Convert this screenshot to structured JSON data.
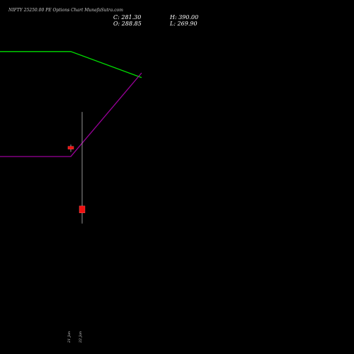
{
  "title": "NIFTY 25250.00 PE Options Chart MunafaSutra.com",
  "ohlc": {
    "close": "C: 281.30",
    "open": "O: 288.85",
    "high": "H: 390.00",
    "low": "L: 269.90"
  },
  "colors": {
    "background": "#000000",
    "line_upper": "#00dd00",
    "line_lower": "#990099",
    "candle": "#ee1111",
    "wick": "#bbbbbb"
  },
  "chart_data": {
    "type": "candlestick",
    "title": "NIFTY 25250.00 PE Options Chart MunafaSutra.com",
    "x_labels": [
      "21 Jan",
      "22 Jan"
    ],
    "yrange": [
      160,
      480
    ],
    "candles": [
      {
        "date": "21 Jan",
        "open": 353,
        "high": 355,
        "low": 347,
        "close": 350
      },
      {
        "date": "22 Jan",
        "open": 288.85,
        "high": 390.0,
        "low": 269.9,
        "close": 281.3
      }
    ],
    "series": [
      {
        "color": "#00dd00",
        "points": [
          {
            "x": "",
            "y": 455
          },
          {
            "x": "21 Jan",
            "y": 455
          },
          {
            "x": "",
            "y": 427
          }
        ]
      },
      {
        "color": "#990099",
        "points": [
          {
            "x": "",
            "y": 342
          },
          {
            "x": "21 Jan",
            "y": 342
          },
          {
            "x": "",
            "y": 432
          }
        ]
      }
    ]
  }
}
